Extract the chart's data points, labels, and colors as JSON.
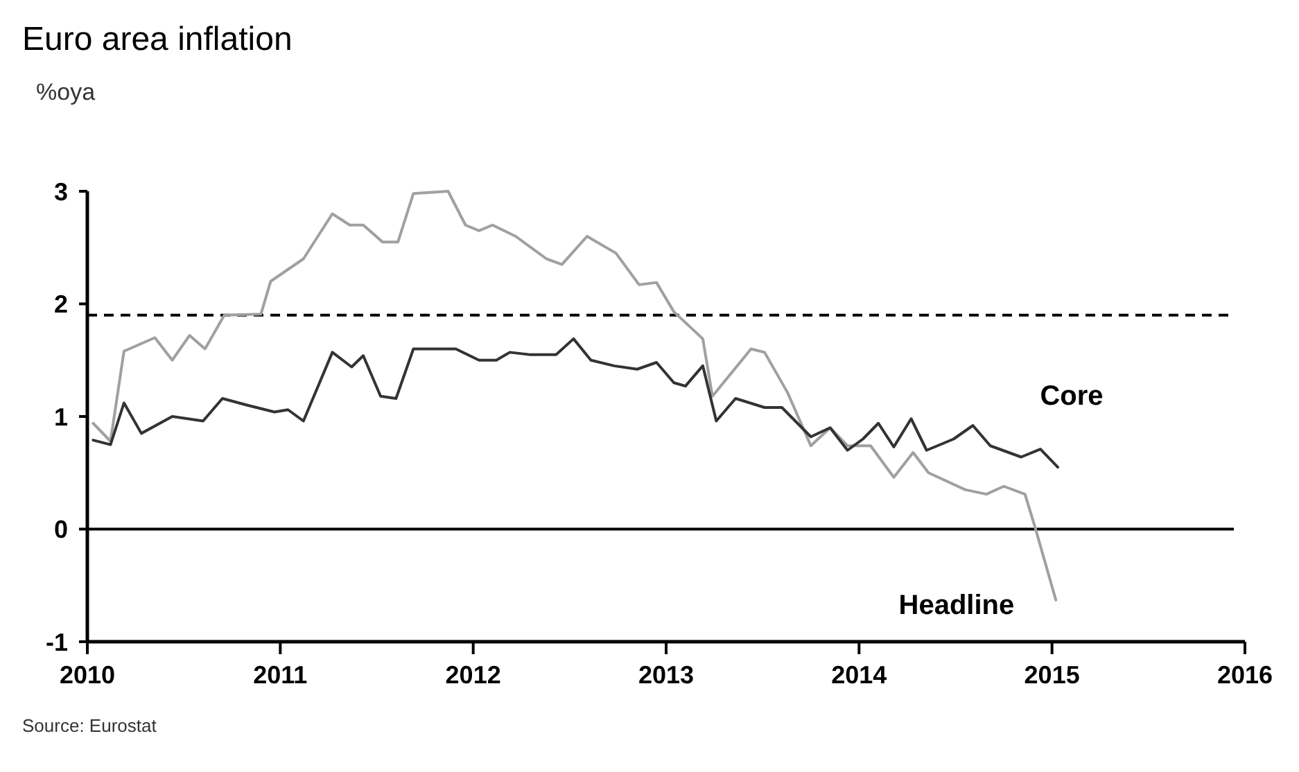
{
  "chart_data": {
    "type": "line",
    "title": "Euro area inflation",
    "subtitle": "%oya",
    "annotations": [
      "Source: Eurostat"
    ],
    "xlim": [
      2010,
      2016
    ],
    "xticks": [
      2010,
      2011,
      2012,
      2013,
      2014,
      2015,
      2016
    ],
    "ylim": [
      -1,
      3
    ],
    "yticks": [
      -1,
      0,
      1,
      2,
      3
    ],
    "grid": false,
    "legend": false,
    "line_style": "solid",
    "marker": "none",
    "ref_lines": [
      {
        "axis": "y",
        "value": 1.9,
        "line_style": "dashed",
        "color": "#000000"
      },
      {
        "axis": "y",
        "value": 0,
        "line_style": "solid",
        "color": "#000000"
      }
    ],
    "series": [
      {
        "name": "Headline",
        "color": "#a0a0a0",
        "x": [
          2010.03,
          2010.12,
          2010.19,
          2010.35,
          2010.44,
          2010.53,
          2010.61,
          2010.71,
          2010.9,
          2010.95,
          2011.12,
          2011.27,
          2011.36,
          2011.43,
          2011.53,
          2011.61,
          2011.69,
          2011.87,
          2011.96,
          2012.03,
          2012.1,
          2012.22,
          2012.38,
          2012.46,
          2012.59,
          2012.74,
          2012.86,
          2012.95,
          2013.04,
          2013.19,
          2013.24,
          2013.44,
          2013.51,
          2013.63,
          2013.75,
          2013.85,
          2013.94,
          2014.06,
          2014.18,
          2014.28,
          2014.36,
          2014.55,
          2014.66,
          2014.75,
          2014.86,
          2014.91,
          2015.02
        ],
        "values": [
          0.94,
          0.78,
          1.58,
          1.7,
          1.5,
          1.72,
          1.6,
          1.9,
          1.91,
          2.2,
          2.4,
          2.8,
          2.7,
          2.7,
          2.55,
          2.55,
          2.98,
          3.0,
          2.7,
          2.65,
          2.7,
          2.6,
          2.4,
          2.35,
          2.6,
          2.45,
          2.17,
          2.19,
          1.93,
          1.69,
          1.18,
          1.6,
          1.57,
          1.21,
          0.74,
          0.9,
          0.74,
          0.74,
          0.46,
          0.68,
          0.5,
          0.35,
          0.31,
          0.38,
          0.31,
          0.03,
          -0.63
        ]
      },
      {
        "name": "Core",
        "color": "#333333",
        "x": [
          2010.03,
          2010.12,
          2010.19,
          2010.28,
          2010.44,
          2010.6,
          2010.7,
          2010.83,
          2010.97,
          2011.04,
          2011.12,
          2011.27,
          2011.37,
          2011.43,
          2011.52,
          2011.6,
          2011.69,
          2011.91,
          2012.03,
          2012.12,
          2012.19,
          2012.29,
          2012.43,
          2012.52,
          2012.61,
          2012.73,
          2012.85,
          2012.95,
          2013.04,
          2013.1,
          2013.19,
          2013.26,
          2013.36,
          2013.51,
          2013.6,
          2013.75,
          2013.85,
          2013.94,
          2014.02,
          2014.1,
          2014.18,
          2014.27,
          2014.35,
          2014.49,
          2014.59,
          2014.68,
          2014.84,
          2014.94,
          2015.03
        ],
        "values": [
          0.79,
          0.75,
          1.12,
          0.85,
          1.0,
          0.96,
          1.16,
          1.1,
          1.04,
          1.06,
          0.96,
          1.57,
          1.44,
          1.54,
          1.18,
          1.16,
          1.6,
          1.6,
          1.5,
          1.5,
          1.57,
          1.55,
          1.55,
          1.69,
          1.5,
          1.45,
          1.42,
          1.48,
          1.3,
          1.27,
          1.45,
          0.96,
          1.16,
          1.08,
          1.08,
          0.82,
          0.9,
          0.7,
          0.8,
          0.94,
          0.73,
          0.98,
          0.7,
          0.8,
          0.92,
          0.74,
          0.64,
          0.71,
          0.55
        ]
      }
    ]
  }
}
